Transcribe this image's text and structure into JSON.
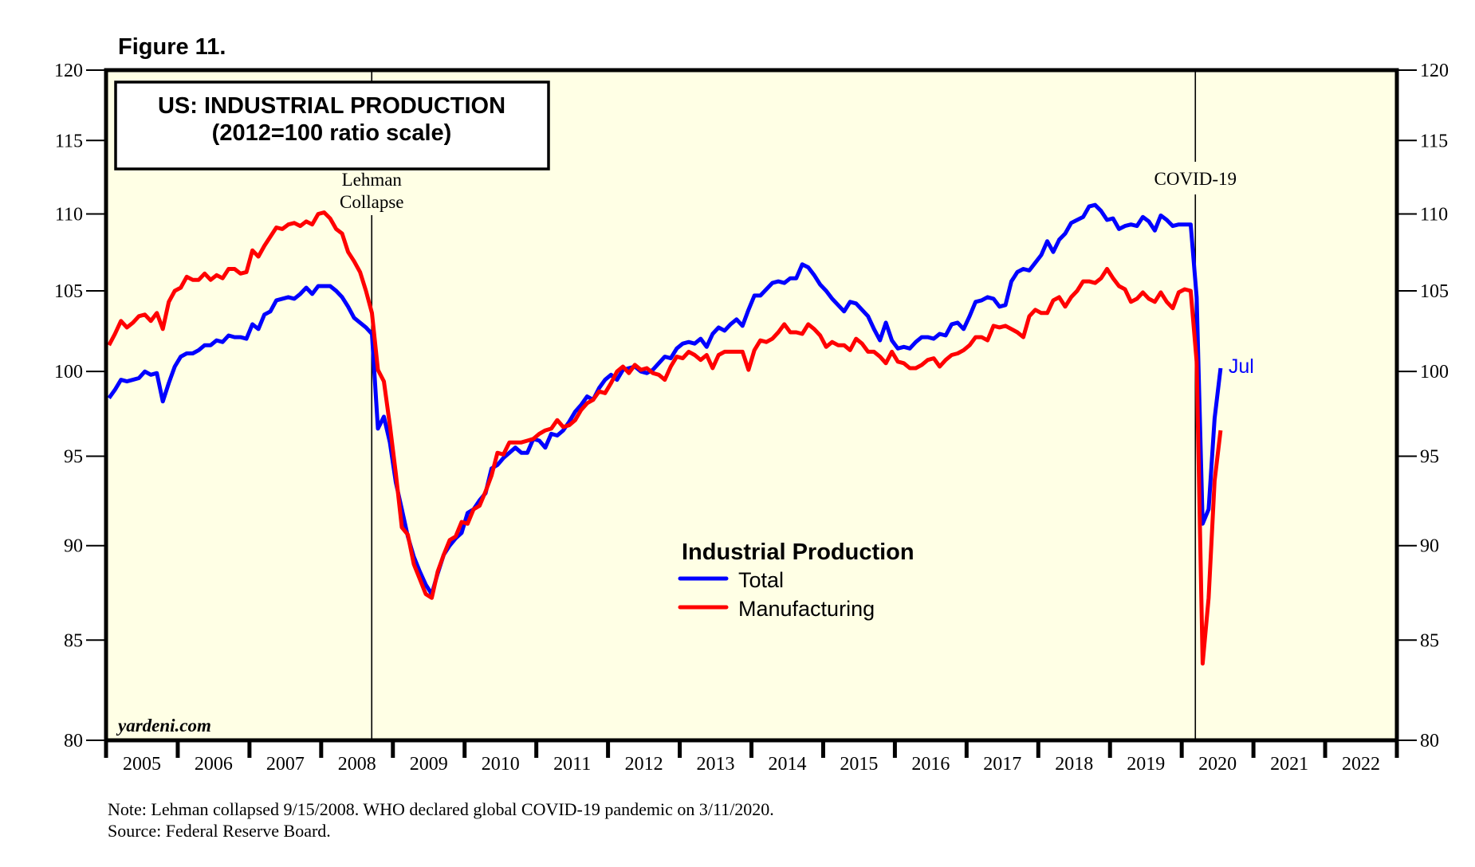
{
  "figure_label": "Figure 11.",
  "note": "Note: Lehman collapsed 9/15/2008. WHO declared global COVID-19 pandemic on 3/11/2020.",
  "source": "Source: Federal Reserve Board.",
  "watermark": "yardeni.com",
  "colors": {
    "background": "#ffffe5",
    "total": "#0000ff",
    "manufacturing": "#ff0000",
    "axis": "#000000"
  },
  "chart_data": {
    "type": "line",
    "title": "US: INDUSTRIAL PRODUCTION",
    "subtitle": "(2012=100 ratio scale)",
    "xlabel": "",
    "ylabel": "",
    "y_scale": "log",
    "ylim": [
      80,
      120
    ],
    "y_ticks": [
      80,
      85,
      90,
      95,
      100,
      105,
      110,
      115,
      120
    ],
    "y_tick_labels": [
      "80",
      "85",
      "90",
      "95",
      "100",
      "105",
      "110",
      "115",
      "120"
    ],
    "xlim": [
      2005,
      2023
    ],
    "x_tick_labels": [
      "2005",
      "2006",
      "2007",
      "2008",
      "2009",
      "2010",
      "2011",
      "2012",
      "2013",
      "2014",
      "2015",
      "2016",
      "2017",
      "2018",
      "2019",
      "2020",
      "2021",
      "2022"
    ],
    "grid": false,
    "frequency": "monthly",
    "start": "2005-01",
    "end": "2020-07",
    "legend": {
      "title": "Industrial Production",
      "position": "lower-center",
      "entries": [
        "Total",
        "Manufacturing"
      ]
    },
    "annotations": [
      {
        "text_lines": [
          "Lehman",
          "Collapse"
        ],
        "x": 2008.705,
        "type": "vertical-line"
      },
      {
        "text_lines": [
          "COVID-19"
        ],
        "x": 2020.19,
        "type": "vertical-line"
      },
      {
        "text": "Jul",
        "series": "Total",
        "type": "end-label"
      }
    ],
    "series": [
      {
        "name": "Total",
        "color": "#0000ff",
        "values": [
          98.4,
          98.9,
          99.5,
          99.4,
          99.5,
          99.6,
          100.0,
          99.8,
          99.9,
          98.2,
          99.3,
          100.3,
          100.9,
          101.1,
          101.1,
          101.3,
          101.6,
          101.6,
          101.9,
          101.8,
          102.2,
          102.1,
          102.1,
          102.0,
          102.9,
          102.6,
          103.5,
          103.7,
          104.4,
          104.5,
          104.6,
          104.5,
          104.8,
          105.2,
          104.8,
          105.3,
          105.3,
          105.3,
          105.0,
          104.6,
          104.0,
          103.3,
          103.0,
          102.7,
          102.3,
          96.6,
          97.3,
          95.8,
          93.5,
          92.0,
          90.5,
          89.4,
          88.6,
          87.9,
          87.4,
          88.5,
          89.5,
          90.0,
          90.4,
          90.7,
          91.8,
          92.0,
          92.5,
          92.9,
          94.3,
          94.5,
          94.9,
          95.2,
          95.5,
          95.2,
          95.2,
          96.0,
          95.9,
          95.5,
          96.3,
          96.2,
          96.5,
          97.0,
          97.6,
          98.0,
          98.5,
          98.3,
          99.0,
          99.5,
          99.8,
          99.5,
          100.1,
          100.2,
          100.3,
          100.0,
          99.9,
          100.1,
          100.5,
          100.9,
          100.8,
          101.4,
          101.7,
          101.8,
          101.7,
          102.0,
          101.5,
          102.3,
          102.7,
          102.5,
          102.9,
          103.2,
          102.8,
          103.8,
          104.7,
          104.7,
          105.1,
          105.5,
          105.6,
          105.5,
          105.8,
          105.8,
          106.7,
          106.5,
          106.0,
          105.4,
          105.0,
          104.5,
          104.1,
          103.7,
          104.3,
          104.2,
          103.8,
          103.4,
          102.6,
          101.9,
          103.0,
          101.9,
          101.4,
          101.5,
          101.4,
          101.8,
          102.1,
          102.1,
          102.0,
          102.3,
          102.2,
          102.9,
          103.0,
          102.6,
          103.4,
          104.3,
          104.4,
          104.6,
          104.5,
          104.0,
          104.1,
          105.6,
          106.2,
          106.4,
          106.3,
          106.8,
          107.3,
          108.2,
          107.5,
          108.3,
          108.7,
          109.4,
          109.6,
          109.8,
          110.5,
          110.6,
          110.2,
          109.6,
          109.7,
          109.0,
          109.2,
          109.3,
          109.2,
          109.8,
          109.5,
          108.9,
          109.9,
          109.6,
          109.2,
          109.3,
          109.3,
          109.3,
          104.6,
          91.2,
          92.0,
          97.2,
          100.2
        ]
      },
      {
        "name": "Manufacturing",
        "color": "#ff0000",
        "values": [
          101.6,
          102.3,
          103.1,
          102.7,
          103.0,
          103.4,
          103.5,
          103.1,
          103.6,
          102.6,
          104.3,
          105.0,
          105.2,
          105.9,
          105.7,
          105.7,
          106.1,
          105.7,
          106.0,
          105.8,
          106.4,
          106.4,
          106.1,
          106.2,
          107.6,
          107.2,
          107.9,
          108.5,
          109.1,
          109.0,
          109.3,
          109.4,
          109.2,
          109.5,
          109.3,
          110.0,
          110.1,
          109.7,
          109.0,
          108.7,
          107.5,
          106.9,
          106.2,
          105.0,
          103.6,
          100.1,
          99.4,
          96.8,
          94.0,
          91.0,
          90.6,
          89.0,
          88.2,
          87.4,
          87.2,
          88.6,
          89.5,
          90.3,
          90.5,
          91.3,
          91.2,
          92.0,
          92.2,
          93.0,
          93.9,
          95.2,
          95.1,
          95.8,
          95.8,
          95.8,
          95.9,
          96.0,
          96.3,
          96.5,
          96.6,
          97.1,
          96.7,
          96.8,
          97.1,
          97.7,
          98.1,
          98.3,
          98.8,
          98.7,
          99.3,
          100.0,
          100.3,
          99.9,
          100.4,
          100.1,
          100.2,
          99.9,
          99.8,
          99.5,
          100.3,
          100.9,
          100.8,
          101.2,
          101.0,
          100.7,
          101.0,
          100.2,
          101.0,
          101.2,
          101.2,
          101.2,
          101.2,
          100.1,
          101.3,
          101.9,
          101.8,
          102.0,
          102.4,
          102.9,
          102.4,
          102.4,
          102.3,
          102.9,
          102.6,
          102.2,
          101.5,
          101.8,
          101.6,
          101.6,
          101.3,
          102.0,
          101.7,
          101.2,
          101.2,
          100.9,
          100.5,
          101.2,
          100.6,
          100.5,
          100.2,
          100.2,
          100.4,
          100.7,
          100.8,
          100.3,
          100.7,
          101.0,
          101.1,
          101.3,
          101.6,
          102.1,
          102.1,
          101.9,
          102.8,
          102.7,
          102.8,
          102.6,
          102.4,
          102.1,
          103.4,
          103.8,
          103.6,
          103.6,
          104.4,
          104.6,
          104.0,
          104.6,
          105.0,
          105.6,
          105.6,
          105.5,
          105.8,
          106.4,
          105.8,
          105.3,
          105.1,
          104.3,
          104.5,
          104.9,
          104.5,
          104.3,
          104.9,
          104.3,
          103.9,
          104.9,
          105.1,
          105.0,
          100.6,
          83.8,
          87.2,
          93.6,
          96.5
        ]
      }
    ]
  }
}
